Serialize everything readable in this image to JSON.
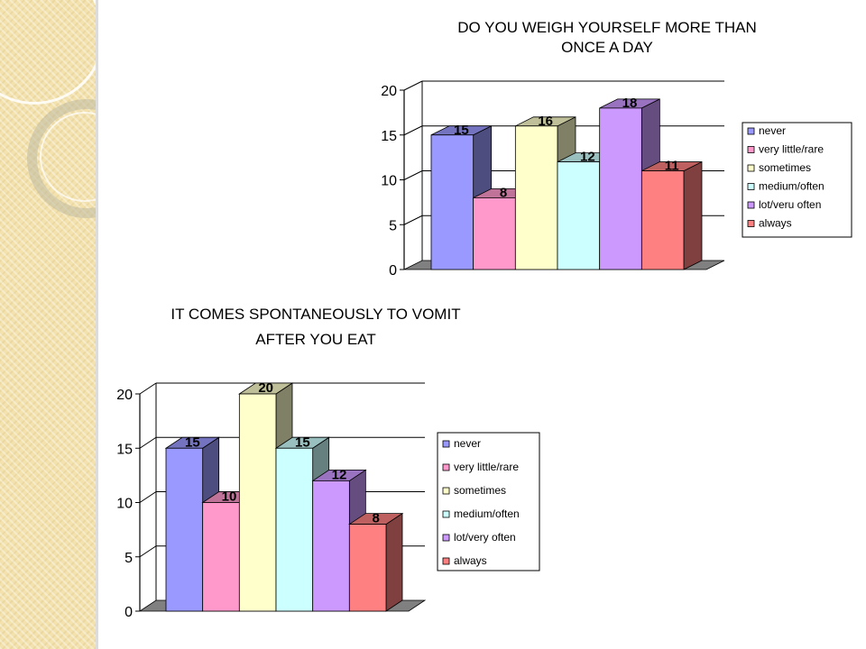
{
  "chart_data": [
    {
      "type": "bar",
      "title": [
        "DO YOU WEIGH YOURSELF MORE THAN",
        "ONCE A DAY"
      ],
      "categories": [
        "never",
        "very little/rare",
        "sometimes",
        "medium/often",
        "lot/veru often",
        "always"
      ],
      "values": [
        15,
        8,
        16,
        12,
        18,
        11
      ],
      "colors": [
        "#9999ff",
        "#ff99cc",
        "#ffffcc",
        "#ccffff",
        "#cc99ff",
        "#ff8080"
      ],
      "yticks": [
        0,
        5,
        10,
        15,
        20
      ],
      "ylim": [
        0,
        20
      ],
      "grid": true,
      "legend_position": "right"
    },
    {
      "type": "bar",
      "title": [
        "IT COMES SPONTANEOUSLY TO VOMIT",
        "AFTER YOU EAT"
      ],
      "categories": [
        "never",
        "very little/rare",
        "sometimes",
        "medium/often",
        "lot/very often",
        "always"
      ],
      "values": [
        15,
        10,
        20,
        15,
        12,
        8
      ],
      "colors": [
        "#9999ff",
        "#ff99cc",
        "#ffffcc",
        "#ccffff",
        "#cc99ff",
        "#ff8080"
      ],
      "yticks": [
        0,
        5,
        10,
        15,
        20
      ],
      "ylim": [
        0,
        20
      ],
      "grid": true,
      "legend_position": "right"
    }
  ]
}
